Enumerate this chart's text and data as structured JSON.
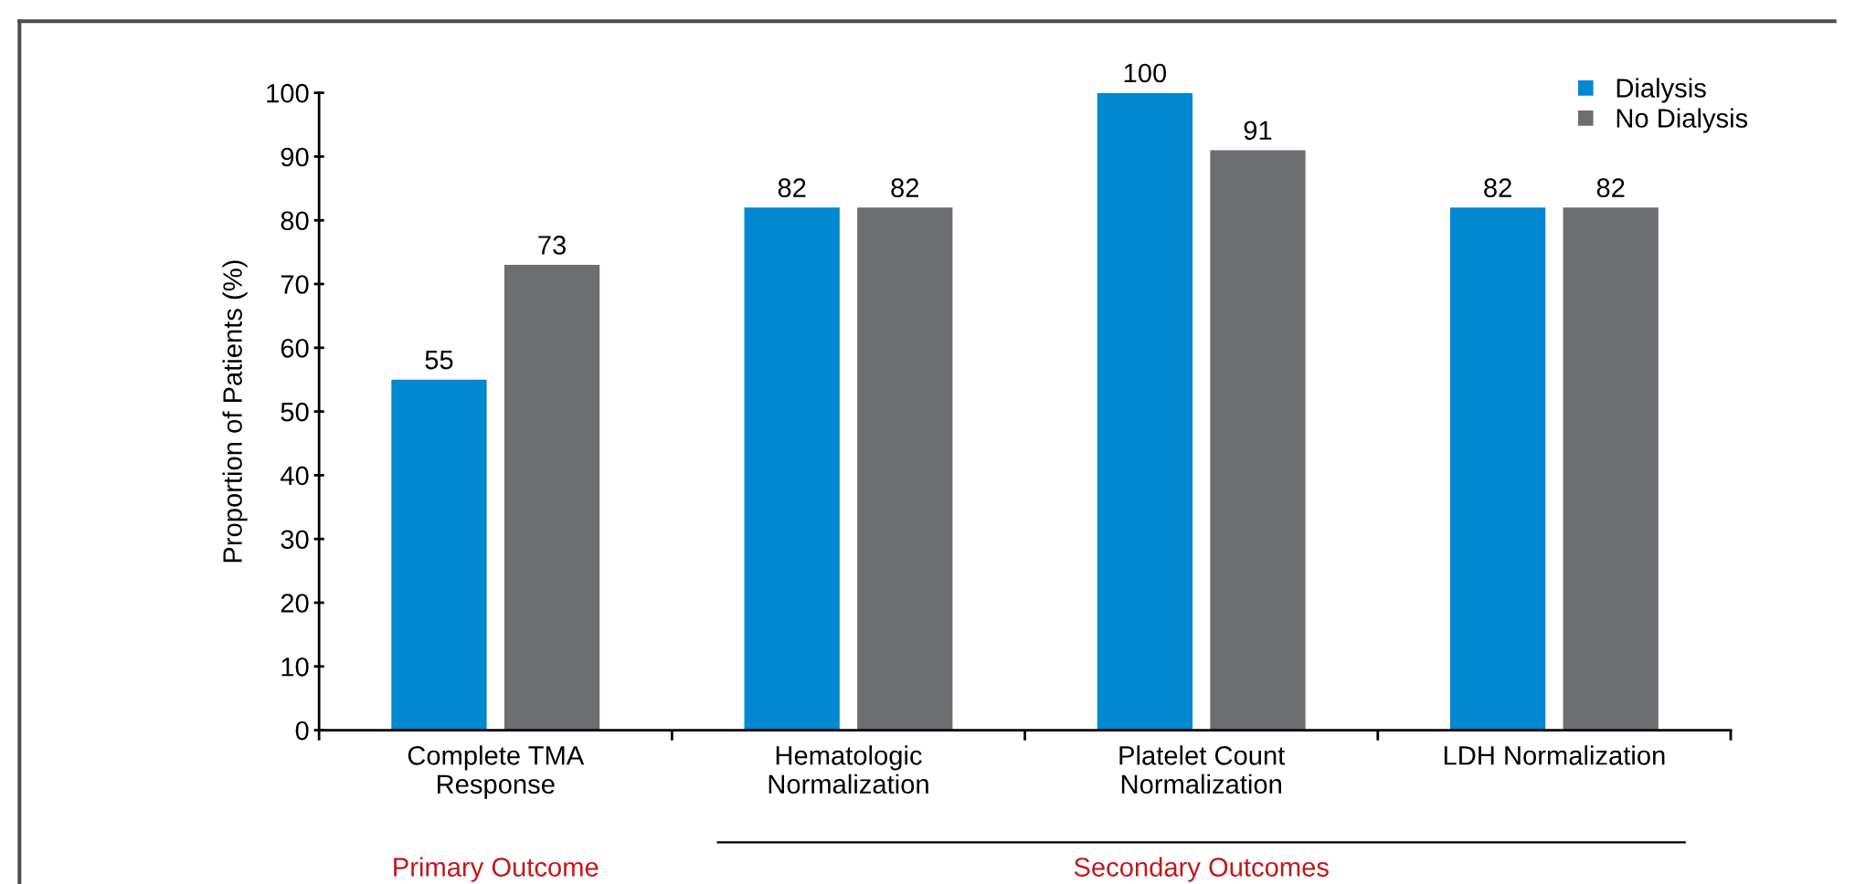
{
  "chart_data": {
    "type": "bar",
    "ylabel": "Proportion of Patients (%)",
    "categories": [
      "Complete TMA\nResponse",
      "Hematologic\nNormalization",
      "Platelet Count\nNormalization",
      "LDH Normalization"
    ],
    "series": [
      {
        "name": "Dialysis",
        "color": "#0088d1",
        "values": [
          55,
          82,
          100,
          82
        ]
      },
      {
        "name": "No Dialysis",
        "color": "#6d6e71",
        "values": [
          73,
          82,
          91,
          82
        ]
      }
    ],
    "ylim": [
      0,
      100
    ],
    "yticks": [
      0,
      10,
      20,
      30,
      40,
      50,
      60,
      70,
      80,
      90,
      100
    ],
    "data_labels": true,
    "grid": false,
    "legend": "top right",
    "annotations": [
      "Primary Outcome",
      "Secondary Outcomes"
    ]
  }
}
